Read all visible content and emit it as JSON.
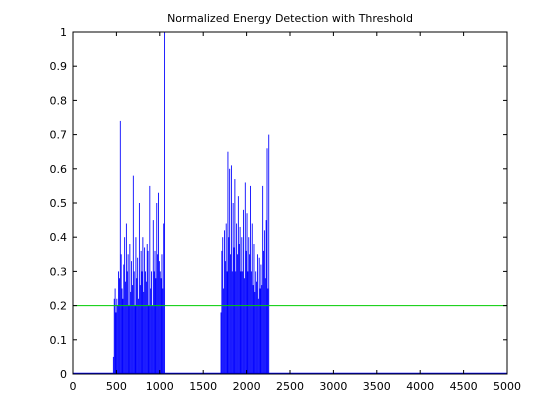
{
  "chart_data": {
    "type": "bar",
    "title": "Normalized Energy Detection with Threshold",
    "xlabel": "",
    "ylabel": "",
    "xlim": [
      0,
      5000
    ],
    "ylim": [
      0,
      1
    ],
    "xticks": [
      "0",
      "500",
      "1000",
      "1500",
      "2000",
      "2500",
      "3000",
      "3500",
      "4000",
      "4500",
      "5000"
    ],
    "yticks": [
      "0",
      "0.1",
      "0.2",
      "0.3",
      "0.4",
      "0.5",
      "0.6",
      "0.7",
      "0.8",
      "0.9",
      "1"
    ],
    "grid": false,
    "legend": "none",
    "colors": {
      "energy": "#0000ff",
      "threshold": "#00cc00",
      "axis": "#000000"
    },
    "threshold": 0.2,
    "series": [
      {
        "kind": "energy-burst",
        "points": [
          [
            460,
            0.05
          ],
          [
            470,
            0.22
          ],
          [
            480,
            0.25
          ],
          [
            490,
            0.18
          ],
          [
            500,
            0.22
          ],
          [
            510,
            0.2
          ],
          [
            520,
            0.3
          ],
          [
            530,
            0.28
          ],
          [
            540,
            0.74
          ],
          [
            550,
            0.35
          ],
          [
            560,
            0.25
          ],
          [
            570,
            0.22
          ],
          [
            580,
            0.32
          ],
          [
            590,
            0.4
          ],
          [
            600,
            0.27
          ],
          [
            610,
            0.44
          ],
          [
            620,
            0.3
          ],
          [
            630,
            0.35
          ],
          [
            640,
            0.2
          ],
          [
            650,
            0.38
          ],
          [
            660,
            0.24
          ],
          [
            670,
            0.33
          ],
          [
            680,
            0.26
          ],
          [
            690,
            0.58
          ],
          [
            700,
            0.3
          ],
          [
            710,
            0.2
          ],
          [
            720,
            0.4
          ],
          [
            730,
            0.28
          ],
          [
            740,
            0.34
          ],
          [
            750,
            0.22
          ],
          [
            760,
            0.5
          ],
          [
            770,
            0.26
          ],
          [
            780,
            0.36
          ],
          [
            790,
            0.3
          ],
          [
            800,
            0.4
          ],
          [
            810,
            0.24
          ],
          [
            820,
            0.37
          ],
          [
            830,
            0.3
          ],
          [
            840,
            0.27
          ],
          [
            850,
            0.38
          ],
          [
            860,
            0.36
          ],
          [
            870,
            0.2
          ],
          [
            880,
            0.55
          ],
          [
            890,
            0.25
          ],
          [
            900,
            0.3
          ],
          [
            910,
            0.2
          ],
          [
            920,
            0.45
          ],
          [
            930,
            0.3
          ],
          [
            940,
            0.36
          ],
          [
            950,
            0.28
          ],
          [
            960,
            0.5
          ],
          [
            970,
            0.35
          ],
          [
            980,
            0.53
          ],
          [
            990,
            0.33
          ],
          [
            1000,
            0.3
          ],
          [
            1010,
            0.28
          ],
          [
            1020,
            0.35
          ],
          [
            1030,
            0.25
          ],
          [
            1040,
            0.44
          ],
          [
            1050,
            1.0
          ]
        ]
      },
      {
        "kind": "energy-burst",
        "points": [
          [
            1700,
            0.18
          ],
          [
            1710,
            0.36
          ],
          [
            1720,
            0.4
          ],
          [
            1730,
            0.25
          ],
          [
            1740,
            0.42
          ],
          [
            1750,
            0.33
          ],
          [
            1760,
            0.44
          ],
          [
            1770,
            0.3
          ],
          [
            1780,
            0.65
          ],
          [
            1790,
            0.4
          ],
          [
            1800,
            0.6
          ],
          [
            1810,
            0.35
          ],
          [
            1820,
            0.61
          ],
          [
            1830,
            0.3
          ],
          [
            1840,
            0.5
          ],
          [
            1850,
            0.37
          ],
          [
            1860,
            0.57
          ],
          [
            1870,
            0.3
          ],
          [
            1880,
            0.44
          ],
          [
            1890,
            0.35
          ],
          [
            1900,
            0.52
          ],
          [
            1910,
            0.38
          ],
          [
            1920,
            0.43
          ],
          [
            1930,
            0.3
          ],
          [
            1940,
            0.4
          ],
          [
            1950,
            0.3
          ],
          [
            1960,
            0.48
          ],
          [
            1970,
            0.28
          ],
          [
            1980,
            0.56
          ],
          [
            1990,
            0.36
          ],
          [
            2000,
            0.47
          ],
          [
            2010,
            0.3
          ],
          [
            2020,
            0.4
          ],
          [
            2030,
            0.35
          ],
          [
            2040,
            0.55
          ],
          [
            2050,
            0.3
          ],
          [
            2060,
            0.44
          ],
          [
            2070,
            0.26
          ],
          [
            2080,
            0.38
          ],
          [
            2090,
            0.24
          ],
          [
            2100,
            0.3
          ],
          [
            2110,
            0.27
          ],
          [
            2120,
            0.35
          ],
          [
            2130,
            0.22
          ],
          [
            2140,
            0.34
          ],
          [
            2150,
            0.25
          ],
          [
            2160,
            0.32
          ],
          [
            2170,
            0.26
          ],
          [
            2180,
            0.55
          ],
          [
            2190,
            0.36
          ],
          [
            2200,
            0.42
          ],
          [
            2210,
            0.28
          ],
          [
            2220,
            0.45
          ],
          [
            2230,
            0.66
          ],
          [
            2240,
            0.25
          ],
          [
            2250,
            0.7
          ]
        ]
      }
    ]
  }
}
